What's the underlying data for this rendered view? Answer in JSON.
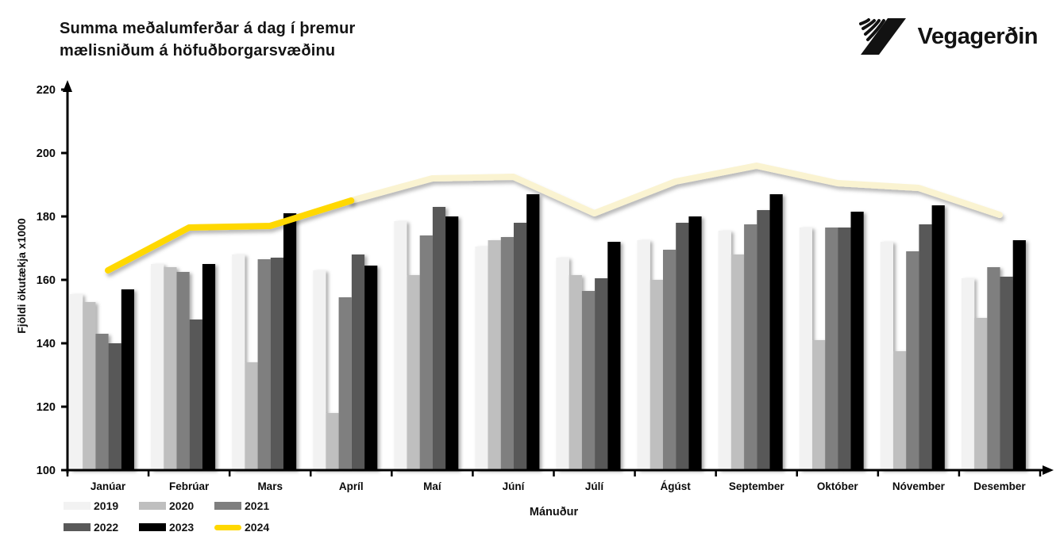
{
  "header": {
    "title_line1": "Summa meðalumferðar á dag í þremur",
    "title_line2": "mælisniðum á höfuðborgarsvæðinu",
    "logo_text": "Vegagerðin"
  },
  "chart_data": {
    "type": "bar",
    "title": "Summa meðalumferðar á dag í þremur mælisniðum á höfuðborgarsvæðinu",
    "xlabel": "Mánuður",
    "ylabel": "Fjöldi ökutækja x1000",
    "ylim": [
      100,
      220
    ],
    "yticks": [
      100,
      120,
      140,
      160,
      180,
      200,
      220
    ],
    "grid": false,
    "legend_position": "bottom-left",
    "categories": [
      "Janúar",
      "Febrúar",
      "Mars",
      "Apríl",
      "Maí",
      "Júní",
      "Júlí",
      "Ágúst",
      "September",
      "Október",
      "Nóvember",
      "Desember"
    ],
    "series": [
      {
        "name": "2019",
        "type": "bar",
        "color": "#f2f2f2",
        "values": [
          155.5,
          165,
          168,
          163,
          178.5,
          170.5,
          167,
          172.5,
          175.5,
          176.5,
          172,
          160.5
        ]
      },
      {
        "name": "2020",
        "type": "bar",
        "color": "#bfbfbf",
        "values": [
          153,
          164,
          134,
          118,
          161.5,
          172.5,
          161.5,
          160,
          168,
          141,
          137.5,
          148
        ]
      },
      {
        "name": "2021",
        "type": "bar",
        "color": "#7f7f7f",
        "values": [
          143,
          162.5,
          166.5,
          154.5,
          174,
          173.5,
          156.5,
          169.5,
          177.5,
          176.5,
          169,
          164
        ]
      },
      {
        "name": "2022",
        "type": "bar",
        "color": "#595959",
        "values": [
          140,
          147.5,
          167,
          168,
          183,
          178,
          160.5,
          178,
          182,
          176.5,
          177.5,
          161
        ]
      },
      {
        "name": "2023",
        "type": "bar",
        "color": "#000000",
        "values": [
          157,
          165,
          181,
          164.5,
          180,
          187,
          172,
          180,
          187,
          181.5,
          183.5,
          172.5
        ]
      },
      {
        "name": "2024",
        "type": "line",
        "color": "#ffd800",
        "projected_color": "#faf3d1",
        "solid_through_index": 3,
        "solid_through_month": "Apríl",
        "values": [
          163,
          176.5,
          177,
          185,
          192,
          192.5,
          181,
          191,
          196,
          190.5,
          189,
          180.5
        ]
      }
    ]
  }
}
